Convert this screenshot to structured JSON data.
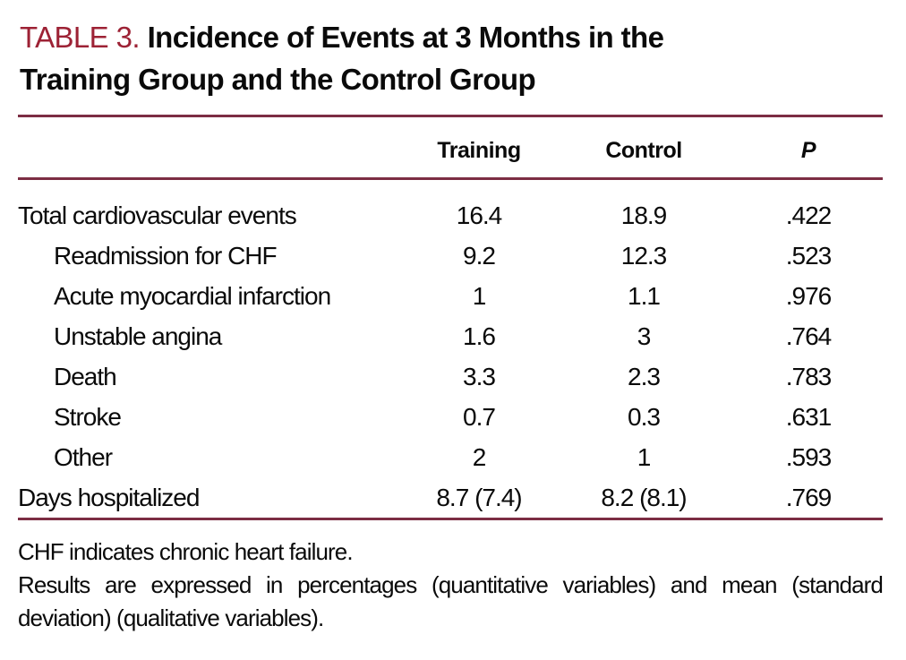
{
  "title": {
    "label": "TABLE 3.",
    "line1": "Incidence of Events at 3 Months in the",
    "line2": "Training Group and the Control Group"
  },
  "table": {
    "columns": {
      "training": "Training",
      "control": "Control",
      "p": "P"
    },
    "rows": [
      {
        "label": "Total cardiovascular events",
        "training": "16.4",
        "control": "18.9",
        "p": ".422"
      },
      {
        "label": "Readmission for CHF",
        "training": "9.2",
        "control": "12.3",
        "p": ".523"
      },
      {
        "label": "Acute myocardial infarction",
        "training": "1",
        "control": "1.1",
        "p": ".976"
      },
      {
        "label": "Unstable angina",
        "training": "1.6",
        "control": "3",
        "p": ".764"
      },
      {
        "label": "Death",
        "training": "3.3",
        "control": "2.3",
        "p": ".783"
      },
      {
        "label": "Stroke",
        "training": "0.7",
        "control": "0.3",
        "p": ".631"
      },
      {
        "label": "Other",
        "training": "2",
        "control": "1",
        "p": ".593"
      },
      {
        "label": "Days hospitalized",
        "training": "8.7 (7.4)",
        "control": "8.2 (8.1)",
        "p": ".769"
      }
    ]
  },
  "footnotes": {
    "line1": "CHF indicates chronic heart failure.",
    "line2": "Results are expressed in percentages (quantitative variables) and mean (standard",
    "line3": "deviation) (qualitative variables)."
  },
  "colors": {
    "accent_red": "#9d2235",
    "rule_maroon": "#7c2d43",
    "text_black": "#0a0a0a",
    "background": "#ffffff"
  }
}
